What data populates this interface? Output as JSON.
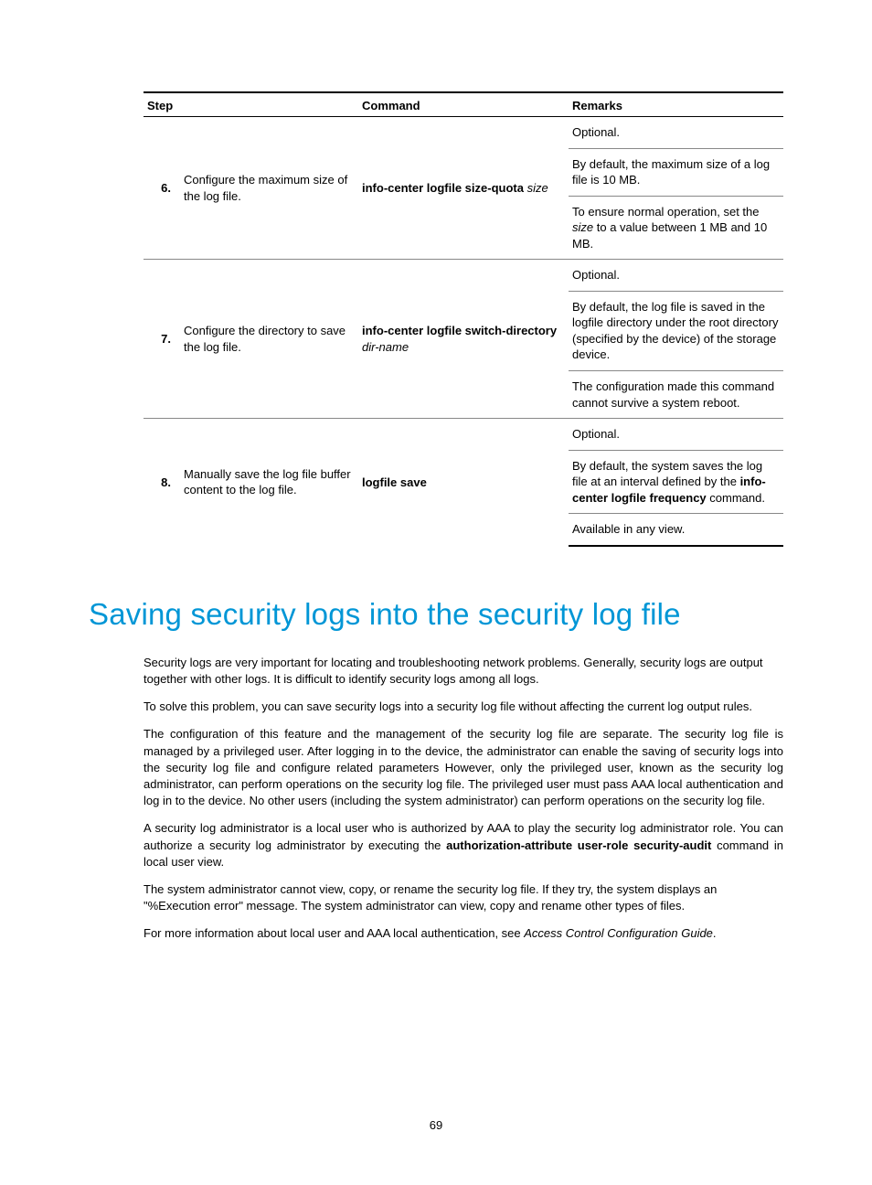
{
  "table": {
    "headers": {
      "step": "Step",
      "command": "Command",
      "remarks": "Remarks"
    },
    "rows": [
      {
        "num": "6.",
        "desc": "Configure the maximum size of the log file.",
        "cmd_bold": "info-center logfile size-quota",
        "cmd_ital": "size",
        "remarks": [
          "Optional.",
          "By default, the maximum size of a log file is 10 MB.",
          {
            "pre": "To ensure normal operation, set the ",
            "ital": "size",
            "post": " to a value between 1 MB and 10 MB."
          }
        ]
      },
      {
        "num": "7.",
        "desc": "Configure the directory to save the log file.",
        "cmd_bold": "info-center logfile switch-directory",
        "cmd_ital": "dir-name",
        "remarks": [
          "Optional.",
          "By default, the log file is saved in the logfile directory under the root directory (specified by the device) of the storage device.",
          "The configuration made this command cannot survive a system reboot."
        ]
      },
      {
        "num": "8.",
        "desc": "Manually save the log file buffer content to the log file.",
        "cmd_bold": "logfile save",
        "cmd_ital": "",
        "remarks": [
          "Optional.",
          {
            "pre": "By default, the system saves the log file at an interval defined by the ",
            "bold": "info-center logfile frequency",
            "post": " command."
          },
          "Available in any view."
        ]
      }
    ]
  },
  "heading": "Saving security logs into the security log file",
  "paragraphs": {
    "p1": "Security logs are very important for locating and troubleshooting network problems. Generally, security logs are output together with other logs. It is difficult to identify security logs among all logs.",
    "p2": "To solve this problem, you can save security logs into a security log file without affecting the current log output rules.",
    "p3": "The configuration of this feature and the management of the security log file are separate. The security log file is managed by a privileged user. After logging in to the device, the administrator can enable the saving of security logs into the security log file and configure related parameters However, only the privileged user, known as the security log administrator, can perform operations on the security log file. The privileged user must pass AAA local authentication and log in to the device. No other users (including the system administrator) can perform operations on the security log file.",
    "p4_pre": "A security log administrator is a local user who is authorized by AAA to play the security log administrator role. You can authorize a security log administrator by executing the ",
    "p4_bold": "authorization-attribute user-role security-audit",
    "p4_post": " command in local user view.",
    "p5": "The system administrator cannot view, copy, or rename the security log file. If they try, the system displays an \"%Execution error\" message. The system administrator can view, copy and rename other types of files.",
    "p6_pre": "For more information about local user and AAA local authentication, see ",
    "p6_ital": "Access Control Configuration Guide",
    "p6_post": "."
  },
  "page_number": "69"
}
